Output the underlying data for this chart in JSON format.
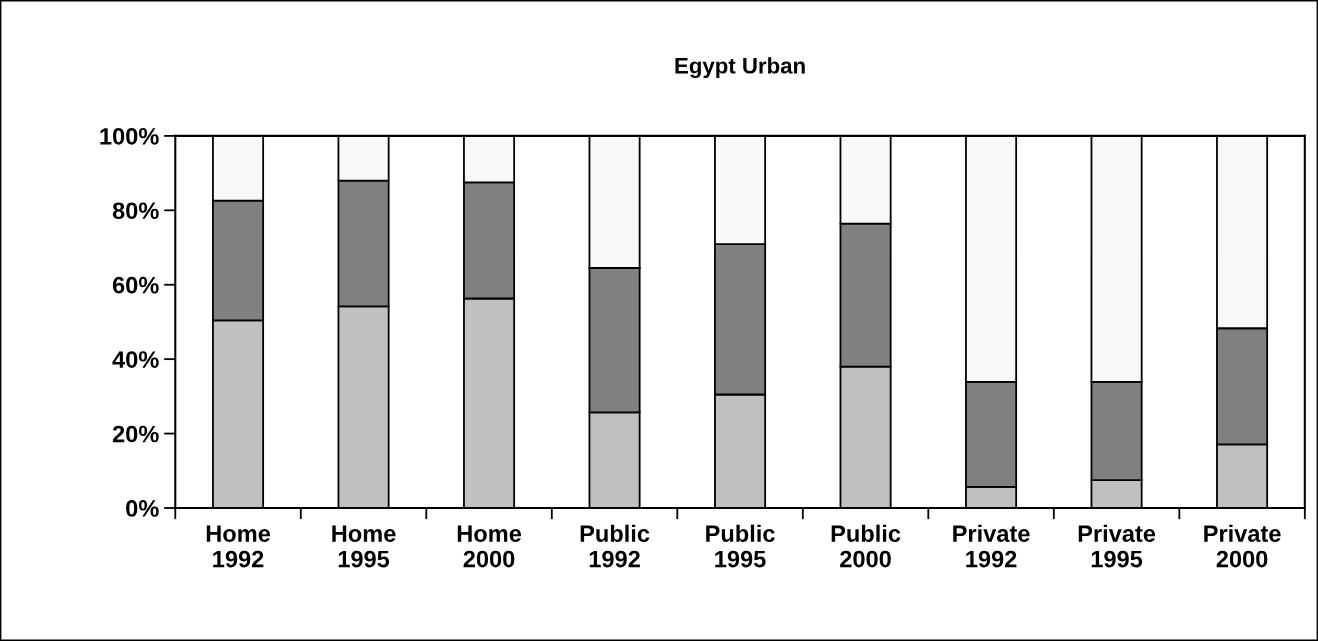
{
  "chart_data": {
    "type": "bar",
    "title": "Egypt Urban",
    "stacked": true,
    "categories": [
      "Home\n1992",
      "Home\n1995",
      "Home\n2000",
      "Public\n1992",
      "Public\n1995",
      "Public\n2000",
      "Private\n1992",
      "Private\n1995",
      "Private\n2000"
    ],
    "series": [
      {
        "color": "#c0c0c0",
        "values": [
          50.4,
          54.2,
          56.3,
          25.7,
          30.5,
          38.0,
          5.7,
          7.5,
          17.1
        ]
      },
      {
        "color": "#808080",
        "values": [
          32.2,
          33.8,
          31.2,
          38.8,
          40.4,
          38.4,
          28.2,
          26.4,
          31.2
        ]
      },
      {
        "color": "#f8f8f8",
        "values": [
          17.4,
          12.0,
          12.5,
          35.5,
          29.1,
          23.6,
          66.1,
          66.1,
          51.7
        ]
      }
    ],
    "ylim": [
      0,
      100
    ],
    "yticks": [
      {
        "value": 0,
        "label": "0%"
      },
      {
        "value": 20,
        "label": "20%"
      },
      {
        "value": 40,
        "label": "40%"
      },
      {
        "value": 60,
        "label": "60%"
      },
      {
        "value": 80,
        "label": "80%"
      },
      {
        "value": 100,
        "label": "100%"
      }
    ],
    "grid": false,
    "legend": false
  }
}
